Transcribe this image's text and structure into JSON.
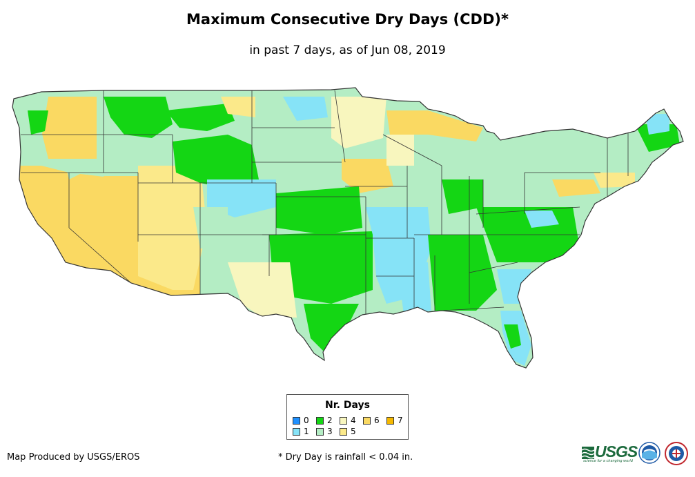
{
  "title": "Maximum Consecutive Dry Days (CDD)*",
  "subtitle": "in past 7 days, as of Jun 08, 2019",
  "legend": {
    "title": "Nr. Days",
    "items": [
      {
        "label": "0",
        "color": "#1e90ff"
      },
      {
        "label": "1",
        "color": "#86e3f7"
      },
      {
        "label": "2",
        "color": "#14d614"
      },
      {
        "label": "3",
        "color": "#b4edc4"
      },
      {
        "label": "4",
        "color": "#f8f6be"
      },
      {
        "label": "5",
        "color": "#fbe98a"
      },
      {
        "label": "6",
        "color": "#fad962"
      },
      {
        "label": "7",
        "color": "#f5b800"
      }
    ]
  },
  "footer": {
    "producer": "Map Produced by USGS/EROS",
    "note": "* Dry Day is rainfall < 0.04 in."
  },
  "logos": {
    "usgs_text": "USGS",
    "usgs_tagline": "science for a changing world",
    "noaa_name": "noaa-logo",
    "nws_name": "national-weather-service-logo"
  }
}
